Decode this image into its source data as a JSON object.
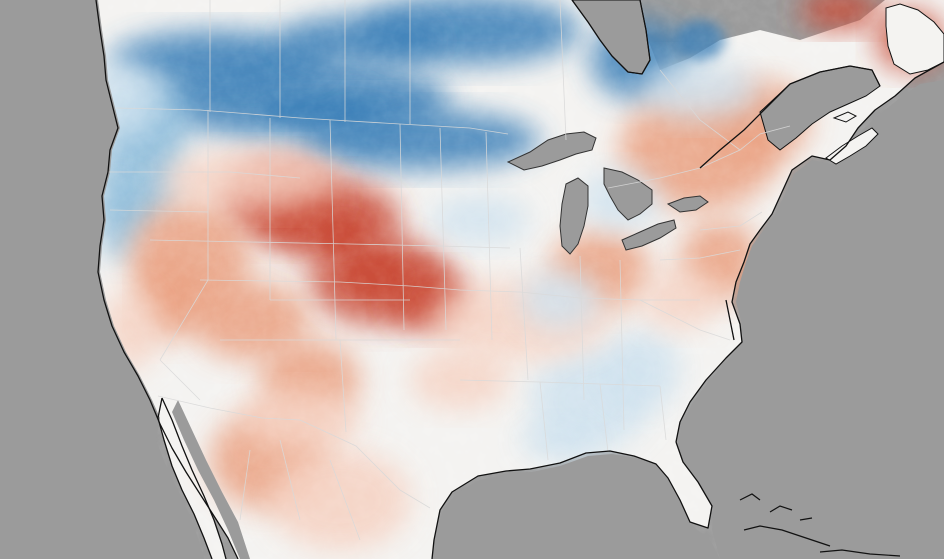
{
  "map": {
    "kind": "land surface temperature anomaly",
    "region": "North America",
    "labels_visible": false,
    "colors": {
      "ocean": "#9b9b9b",
      "lakes": "#9b9b9b",
      "coastline": "#111111",
      "borders": "#d9d9d9",
      "neutral": "#f4f3f1",
      "cool_light": "#cfe2ef",
      "cool_mid": "#8fbddb",
      "cool_strong": "#3a7fb8",
      "warm_light": "#f6d2c2",
      "warm_mid": "#eaa182",
      "warm_strong": "#c94a36"
    },
    "anomaly_pattern": [
      {
        "area": "northern-plains-canada",
        "sign": "cool",
        "intensity": "strong"
      },
      {
        "area": "pacific-northwest-coast",
        "sign": "cool",
        "intensity": "mid"
      },
      {
        "area": "central-great-plains",
        "sign": "warm",
        "intensity": "strong"
      },
      {
        "area": "great-basin-southwest",
        "sign": "warm",
        "intensity": "mid"
      },
      {
        "area": "southeast-us",
        "sign": "cool",
        "intensity": "light"
      },
      {
        "area": "northeast-us-quebec",
        "sign": "warm",
        "intensity": "mid"
      },
      {
        "area": "newfoundland",
        "sign": "warm",
        "intensity": "strong"
      },
      {
        "area": "mexico-north",
        "sign": "warm",
        "intensity": "light"
      }
    ]
  }
}
